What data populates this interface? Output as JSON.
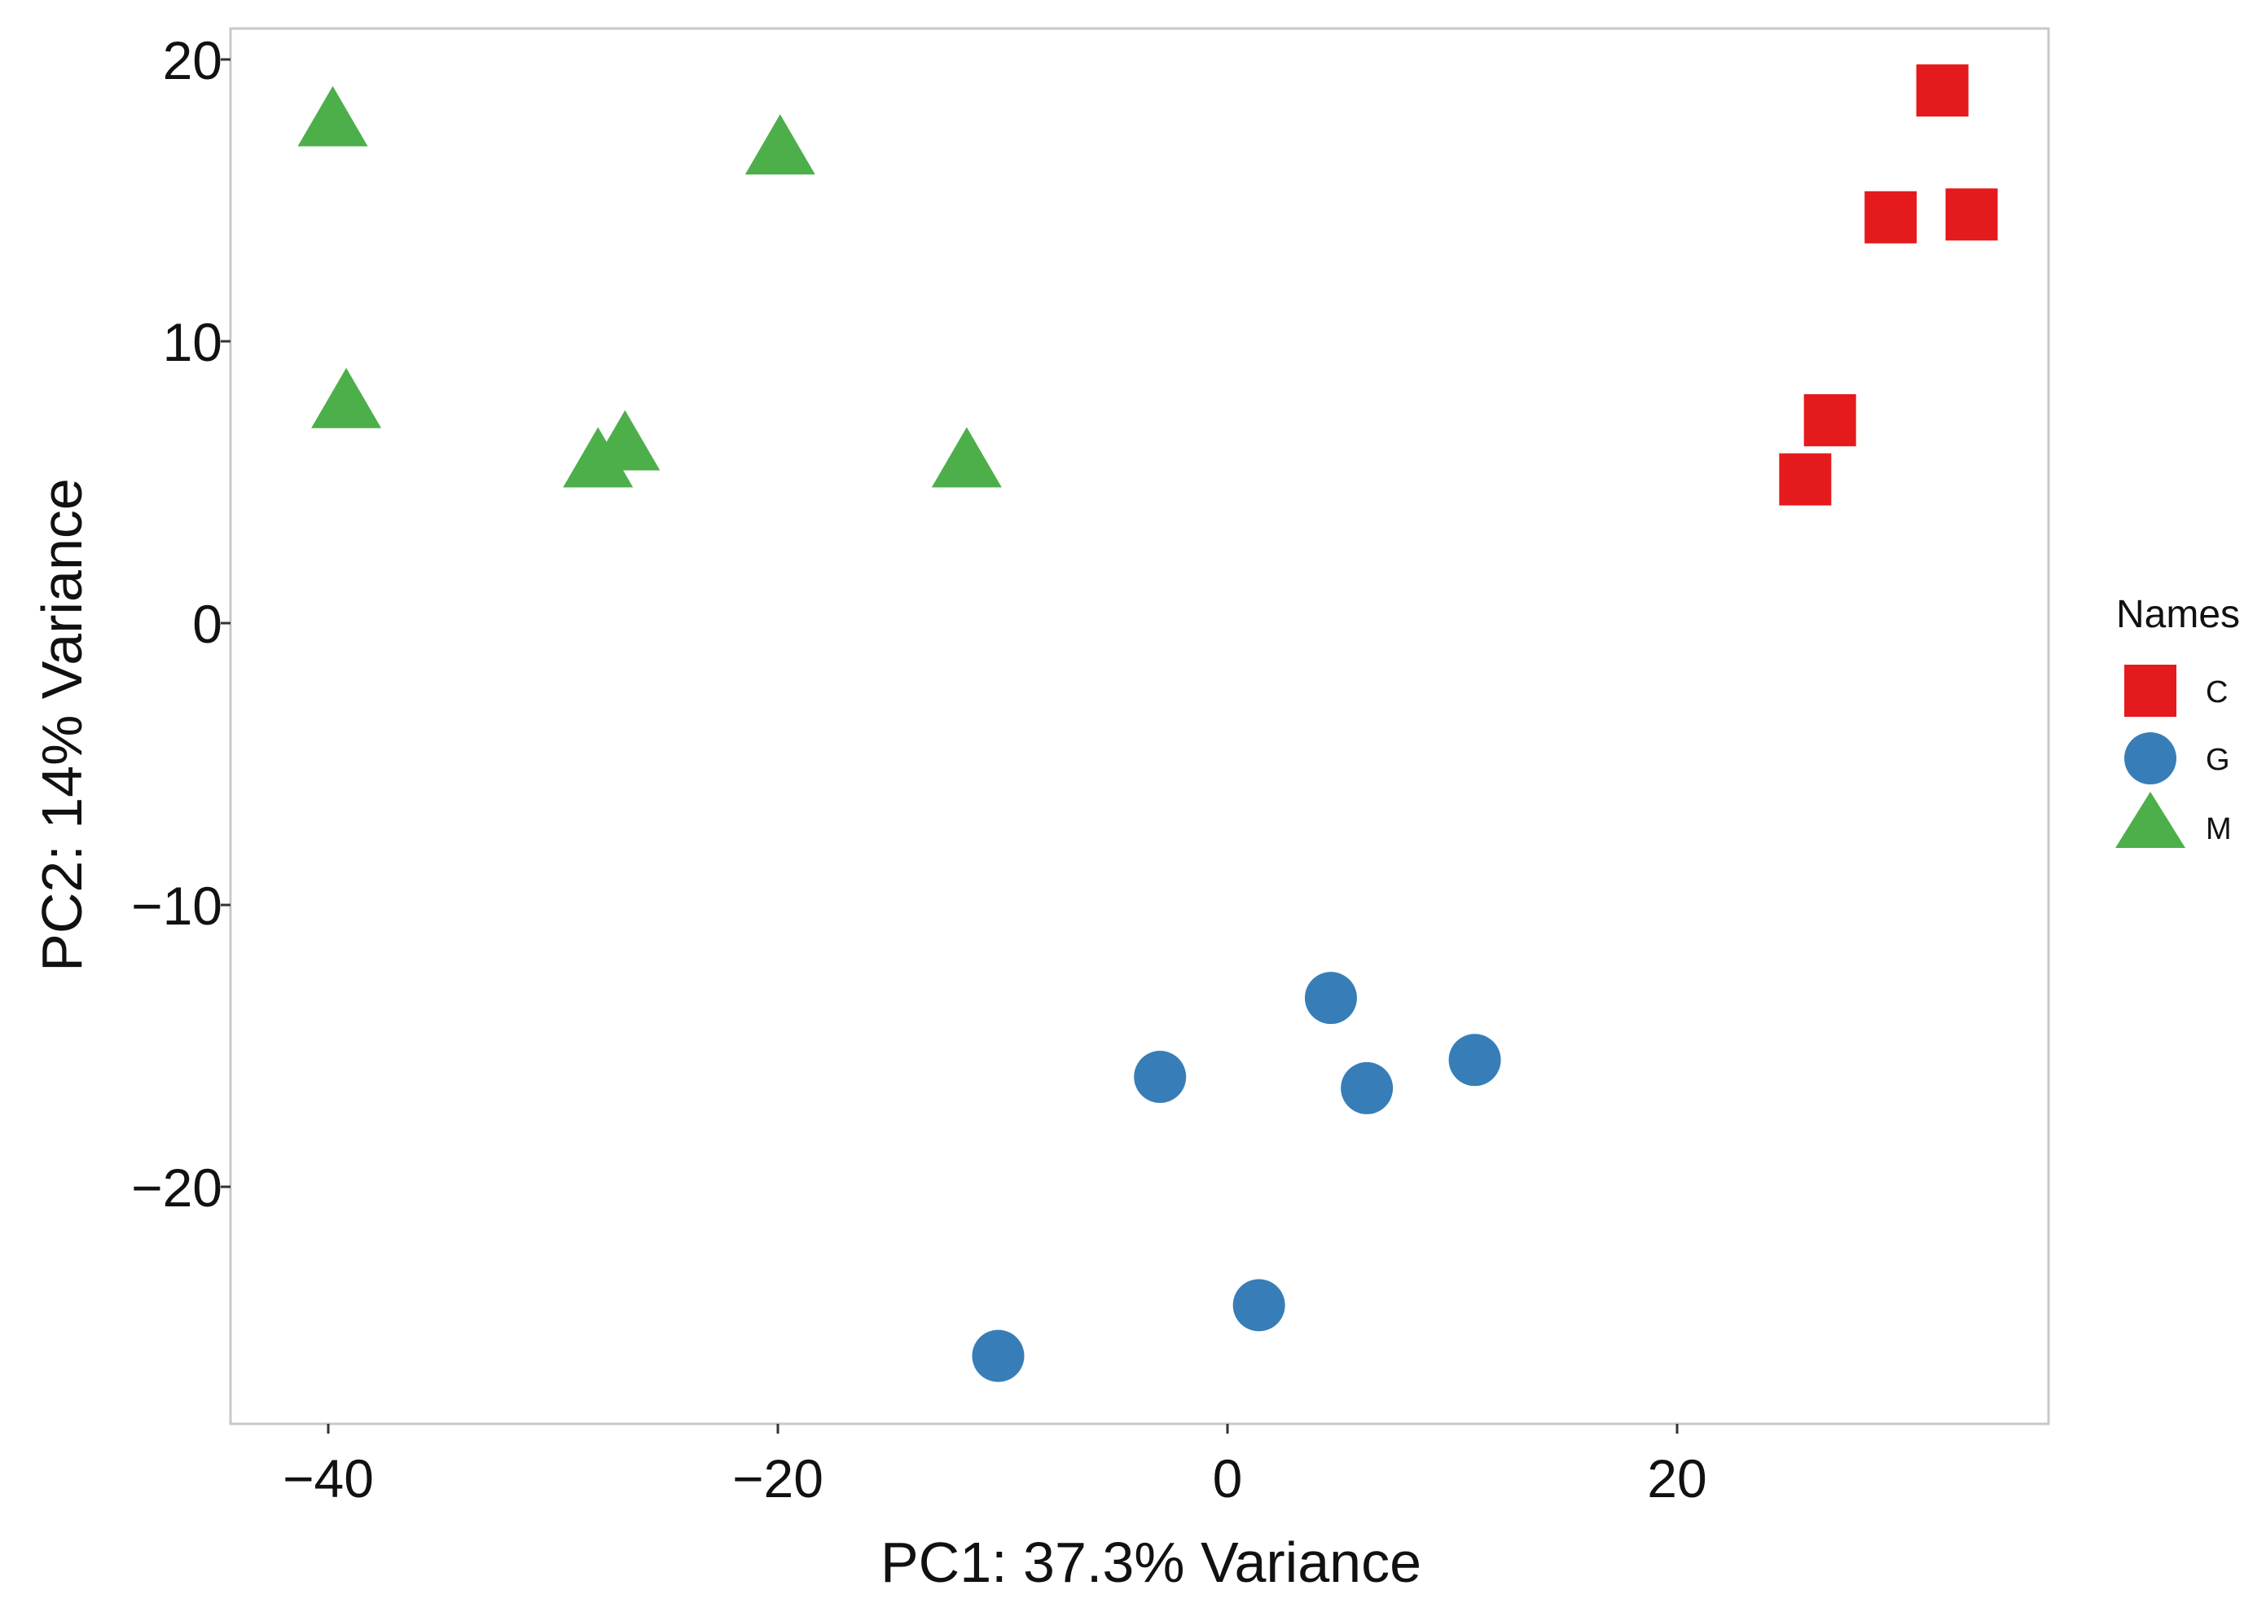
{
  "chart_data": {
    "type": "scatter",
    "title": "",
    "xlabel": "PC1: 37.3% Variance",
    "ylabel": "PC2: 14% Variance",
    "xlim": [
      -43,
      37
    ],
    "ylim": [
      -28,
      21
    ],
    "x_ticks": [
      -40,
      -20,
      0,
      20
    ],
    "x_tick_labels": [
      "−40",
      "−20",
      "0",
      "20"
    ],
    "y_ticks": [
      20,
      10,
      0,
      -10,
      -20
    ],
    "y_tick_labels": [
      "20",
      "10",
      "0",
      "−10",
      "−20"
    ],
    "grid": false,
    "legend": {
      "title": "Names",
      "position": "right"
    },
    "series": [
      {
        "name": "C",
        "marker": "square",
        "color": "#e41a1c",
        "points": [
          {
            "x": 31.8,
            "y": 18.9
          },
          {
            "x": 29.5,
            "y": 14.4
          },
          {
            "x": 33.1,
            "y": 14.5
          },
          {
            "x": 26.8,
            "y": 7.2
          },
          {
            "x": 25.7,
            "y": 5.1
          }
        ]
      },
      {
        "name": "G",
        "marker": "circle",
        "color": "#377eb8",
        "points": [
          {
            "x": 4.6,
            "y": -13.3
          },
          {
            "x": -3.0,
            "y": -16.1
          },
          {
            "x": 6.2,
            "y": -16.5
          },
          {
            "x": 11.0,
            "y": -15.5
          },
          {
            "x": 1.4,
            "y": -24.2
          },
          {
            "x": -10.2,
            "y": -26.0
          }
        ]
      },
      {
        "name": "M",
        "marker": "triangle",
        "color": "#4daf4a",
        "points": [
          {
            "x": -39.8,
            "y": 17.9
          },
          {
            "x": -19.9,
            "y": 16.9
          },
          {
            "x": -39.2,
            "y": 7.9
          },
          {
            "x": -26.8,
            "y": 6.4
          },
          {
            "x": -28.0,
            "y": 5.8
          },
          {
            "x": -11.6,
            "y": 5.8
          }
        ]
      }
    ]
  }
}
